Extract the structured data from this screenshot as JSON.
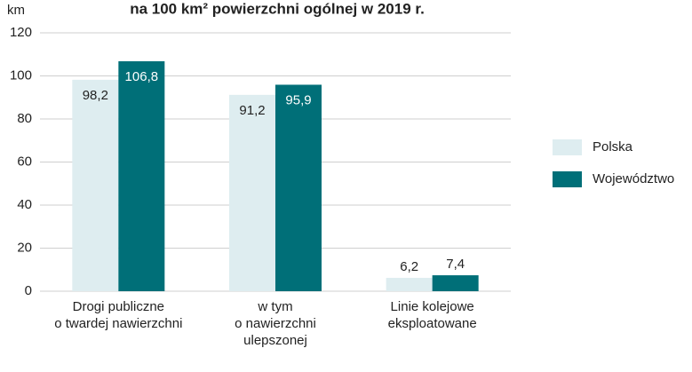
{
  "chart_data": {
    "type": "bar",
    "title": "na 100 km² powierzchni ogólnej w 2019 r.",
    "y_axis_label": "km",
    "categories": [
      "Drogi publiczne\no twardej nawierzchni",
      "w tym\no nawierzchni\nulepszonej",
      "Linie kolejowe\neksploatowane"
    ],
    "series": [
      {
        "name": "Polska",
        "color": "#deedf0",
        "values": [
          98.2,
          91.2,
          6.2
        ],
        "value_labels": [
          "98,2",
          "91,2",
          "6,2"
        ]
      },
      {
        "name": "Województwo",
        "color": "#006f78",
        "values": [
          106.8,
          95.9,
          7.4
        ],
        "value_labels": [
          "106,8",
          "95,9",
          "7,4"
        ]
      }
    ],
    "ylim": [
      0,
      120
    ],
    "yticks": [
      0,
      20,
      40,
      60,
      80,
      100,
      120
    ],
    "grid": true,
    "legend": "right"
  }
}
